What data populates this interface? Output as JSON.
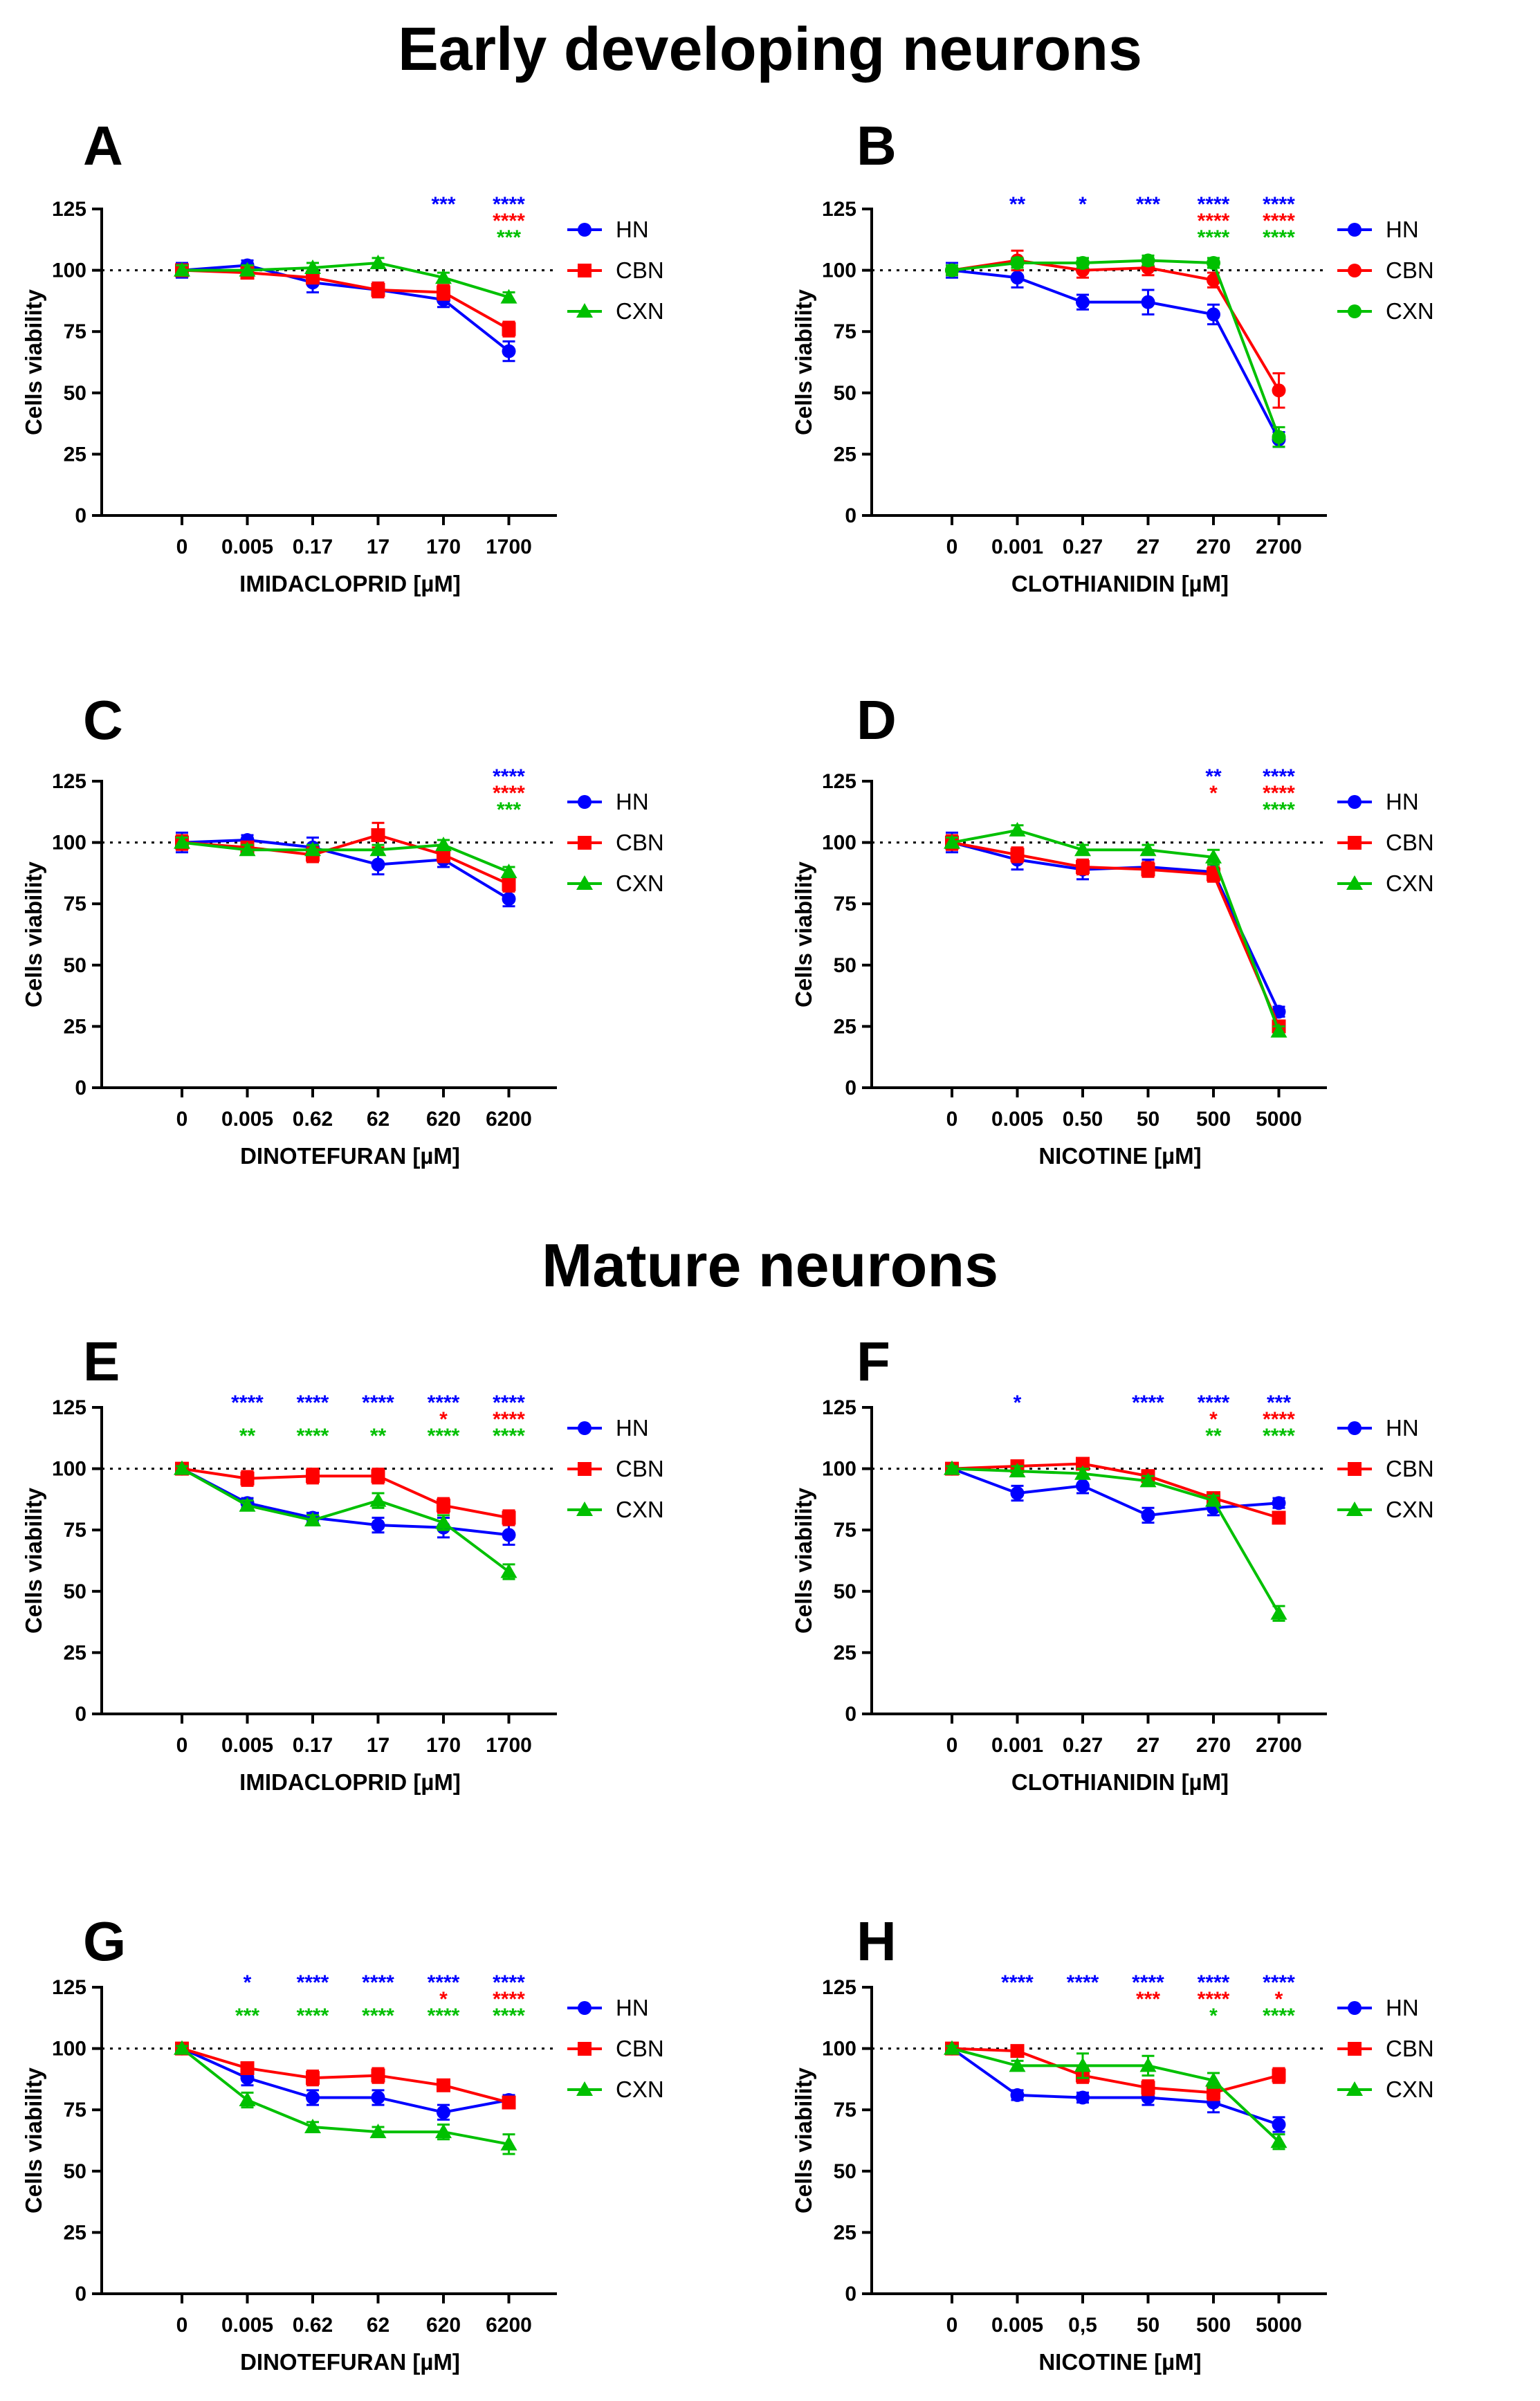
{
  "section_titles": {
    "early": "Early developing neurons",
    "mature": "Mature neurons"
  },
  "colors": {
    "HN": "#0000ff",
    "CBN": "#ff0000",
    "CXN": "#00c000"
  },
  "chart_data": [
    {
      "panel": "A",
      "type": "line",
      "xlabel": "IMIDACLOPRID [µM]",
      "ylabel": "Cells viability",
      "categories": [
        "0",
        "0.005",
        "0.17",
        "17",
        "170",
        "1700"
      ],
      "ylim": [
        0,
        125
      ],
      "yticks": [
        0,
        25,
        50,
        75,
        100,
        125
      ],
      "reference_line": 100,
      "series": [
        {
          "name": "HN",
          "marker": "circle",
          "values": [
            100,
            102,
            95,
            92,
            88,
            67
          ],
          "errors": [
            3,
            2,
            4,
            3,
            3,
            4
          ]
        },
        {
          "name": "CBN",
          "marker": "square",
          "values": [
            100,
            99,
            97,
            92,
            91,
            76
          ],
          "errors": [
            2,
            2,
            2,
            3,
            3,
            3
          ]
        },
        {
          "name": "CXN",
          "marker": "triangle",
          "values": [
            100,
            100,
            101,
            103,
            97,
            89
          ],
          "errors": [
            2,
            2,
            2,
            2,
            2,
            2
          ]
        }
      ],
      "significance": [
        {
          "row": 0,
          "color": "HN",
          "marks": [
            "",
            "",
            "",
            "",
            "***",
            "****"
          ]
        },
        {
          "row": 1,
          "color": "CBN",
          "marks": [
            "",
            "",
            "",
            "",
            "",
            "****"
          ]
        },
        {
          "row": 2,
          "color": "CXN",
          "marks": [
            "",
            "",
            "",
            "",
            "",
            "***"
          ]
        }
      ]
    },
    {
      "panel": "B",
      "type": "line",
      "xlabel": "CLOTHIANIDIN [µM]",
      "ylabel": "Cells viability",
      "categories": [
        "0",
        "0.001",
        "0.27",
        "27",
        "270",
        "2700"
      ],
      "ylim": [
        0,
        125
      ],
      "yticks": [
        0,
        25,
        50,
        75,
        100,
        125
      ],
      "reference_line": 100,
      "series": [
        {
          "name": "HN",
          "marker": "circle",
          "values": [
            100,
            97,
            87,
            87,
            82,
            31
          ],
          "errors": [
            3,
            4,
            3,
            5,
            4,
            3
          ]
        },
        {
          "name": "CBN",
          "marker": "circle",
          "values": [
            100,
            104,
            100,
            101,
            96,
            51
          ],
          "errors": [
            2,
            4,
            3,
            3,
            3,
            7
          ]
        },
        {
          "name": "CXN",
          "marker": "circle",
          "values": [
            100,
            103,
            103,
            104,
            103,
            32
          ],
          "errors": [
            2,
            2,
            2,
            2,
            2,
            4
          ]
        }
      ],
      "significance": [
        {
          "row": 0,
          "color": "HN",
          "marks": [
            "",
            "**",
            "*",
            "***",
            "****",
            "****"
          ]
        },
        {
          "row": 1,
          "color": "CBN",
          "marks": [
            "",
            "",
            "",
            "",
            "****",
            "****"
          ]
        },
        {
          "row": 2,
          "color": "CXN",
          "marks": [
            "",
            "",
            "",
            "",
            "****",
            "****"
          ]
        }
      ]
    },
    {
      "panel": "C",
      "type": "line",
      "xlabel": "DINOTEFURAN [µM]",
      "ylabel": "Cells viability",
      "categories": [
        "0",
        "0.005",
        "0.62",
        "62",
        "620",
        "6200"
      ],
      "ylim": [
        0,
        125
      ],
      "yticks": [
        0,
        25,
        50,
        75,
        100,
        125
      ],
      "reference_line": 100,
      "series": [
        {
          "name": "HN",
          "marker": "circle",
          "values": [
            100,
            101,
            98,
            91,
            93,
            77
          ],
          "errors": [
            4,
            2,
            4,
            4,
            3,
            3
          ]
        },
        {
          "name": "CBN",
          "marker": "square",
          "values": [
            100,
            98,
            95,
            103,
            95,
            83
          ],
          "errors": [
            3,
            2,
            3,
            5,
            3,
            3
          ]
        },
        {
          "name": "CXN",
          "marker": "triangle",
          "values": [
            100,
            97,
            97,
            97,
            99,
            88
          ],
          "errors": [
            2,
            2,
            2,
            2,
            2,
            2
          ]
        }
      ],
      "significance": [
        {
          "row": 0,
          "color": "HN",
          "marks": [
            "",
            "",
            "",
            "",
            "",
            "****"
          ]
        },
        {
          "row": 1,
          "color": "CBN",
          "marks": [
            "",
            "",
            "",
            "",
            "",
            "****"
          ]
        },
        {
          "row": 2,
          "color": "CXN",
          "marks": [
            "",
            "",
            "",
            "",
            "",
            "***"
          ]
        }
      ]
    },
    {
      "panel": "D",
      "type": "line",
      "xlabel": "NICOTINE [µM]",
      "ylabel": "Cells viability",
      "categories": [
        "0",
        "0.005",
        "0.50",
        "50",
        "500",
        "5000"
      ],
      "ylim": [
        0,
        125
      ],
      "yticks": [
        0,
        25,
        50,
        75,
        100,
        125
      ],
      "reference_line": 100,
      "series": [
        {
          "name": "HN",
          "marker": "circle",
          "values": [
            100,
            93,
            89,
            90,
            88,
            31
          ],
          "errors": [
            4,
            4,
            4,
            3,
            3,
            2
          ]
        },
        {
          "name": "CBN",
          "marker": "square",
          "values": [
            100,
            95,
            90,
            89,
            87,
            25
          ],
          "errors": [
            3,
            3,
            3,
            3,
            3,
            2
          ]
        },
        {
          "name": "CXN",
          "marker": "triangle",
          "values": [
            100,
            105,
            97,
            97,
            94,
            23
          ],
          "errors": [
            2,
            2,
            2,
            2,
            3,
            2
          ]
        }
      ],
      "significance": [
        {
          "row": 0,
          "color": "HN",
          "marks": [
            "",
            "",
            "",
            "",
            "**",
            "****"
          ]
        },
        {
          "row": 1,
          "color": "CBN",
          "marks": [
            "",
            "",
            "",
            "",
            "*",
            "****"
          ]
        },
        {
          "row": 2,
          "color": "CXN",
          "marks": [
            "",
            "",
            "",
            "",
            "",
            "****"
          ]
        }
      ]
    },
    {
      "panel": "E",
      "type": "line",
      "xlabel": "IMIDACLOPRID [µM]",
      "ylabel": "Cells viability",
      "categories": [
        "0",
        "0.005",
        "0.17",
        "17",
        "170",
        "1700"
      ],
      "ylim": [
        0,
        125
      ],
      "yticks": [
        0,
        25,
        50,
        75,
        100,
        125
      ],
      "reference_line": 100,
      "series": [
        {
          "name": "HN",
          "marker": "circle",
          "values": [
            100,
            86,
            80,
            77,
            76,
            73
          ],
          "errors": [
            1,
            2,
            2,
            3,
            4,
            4
          ]
        },
        {
          "name": "CBN",
          "marker": "square",
          "values": [
            100,
            96,
            97,
            97,
            85,
            80
          ],
          "errors": [
            1,
            3,
            3,
            3,
            3,
            3
          ]
        },
        {
          "name": "CXN",
          "marker": "triangle",
          "values": [
            100,
            85,
            79,
            87,
            78,
            58
          ],
          "errors": [
            1,
            2,
            2,
            3,
            3,
            3
          ]
        }
      ],
      "significance": [
        {
          "row": 0,
          "color": "HN",
          "marks": [
            "",
            "****",
            "****",
            "****",
            "****",
            "****"
          ]
        },
        {
          "row": 1,
          "color": "CBN",
          "marks": [
            "",
            "",
            "",
            "",
            "*",
            "****"
          ]
        },
        {
          "row": 2,
          "color": "CXN",
          "marks": [
            "",
            "**",
            "****",
            "**",
            "****",
            "****"
          ]
        }
      ]
    },
    {
      "panel": "F",
      "type": "line",
      "xlabel": "CLOTHIANIDIN [µM]",
      "ylabel": "Cells viability",
      "categories": [
        "0",
        "0.001",
        "0.27",
        "27",
        "270",
        "2700"
      ],
      "ylim": [
        0,
        125
      ],
      "yticks": [
        0,
        25,
        50,
        75,
        100,
        125
      ],
      "reference_line": 100,
      "series": [
        {
          "name": "HN",
          "marker": "circle",
          "values": [
            100,
            90,
            93,
            81,
            84,
            86
          ],
          "errors": [
            1,
            3,
            3,
            3,
            3,
            2
          ]
        },
        {
          "name": "CBN",
          "marker": "square",
          "values": [
            100,
            101,
            102,
            97,
            88,
            80
          ],
          "errors": [
            1,
            2,
            2,
            2,
            2,
            2
          ]
        },
        {
          "name": "CXN",
          "marker": "triangle",
          "values": [
            100,
            99,
            98,
            95,
            87,
            41
          ],
          "errors": [
            1,
            2,
            2,
            2,
            2,
            3
          ]
        }
      ],
      "significance": [
        {
          "row": 0,
          "color": "HN",
          "marks": [
            "",
            "*",
            "",
            "****",
            "****",
            "***"
          ]
        },
        {
          "row": 1,
          "color": "CBN",
          "marks": [
            "",
            "",
            "",
            "",
            "*",
            "****"
          ]
        },
        {
          "row": 2,
          "color": "CXN",
          "marks": [
            "",
            "",
            "",
            "",
            "**",
            "****"
          ]
        }
      ]
    },
    {
      "panel": "G",
      "type": "line",
      "xlabel": "DINOTEFURAN [µM]",
      "ylabel": "Cells viability",
      "categories": [
        "0",
        "0.005",
        "0.62",
        "62",
        "620",
        "6200"
      ],
      "ylim": [
        0,
        125
      ],
      "yticks": [
        0,
        25,
        50,
        75,
        100,
        125
      ],
      "reference_line": 100,
      "series": [
        {
          "name": "HN",
          "marker": "circle",
          "values": [
            100,
            88,
            80,
            80,
            74,
            79
          ],
          "errors": [
            1,
            3,
            3,
            3,
            3,
            2
          ]
        },
        {
          "name": "CBN",
          "marker": "square",
          "values": [
            100,
            92,
            88,
            89,
            85,
            78
          ],
          "errors": [
            1,
            2,
            3,
            3,
            2,
            2
          ]
        },
        {
          "name": "CXN",
          "marker": "triangle",
          "values": [
            100,
            79,
            68,
            66,
            66,
            61
          ],
          "errors": [
            1,
            3,
            2,
            2,
            3,
            4
          ]
        }
      ],
      "significance": [
        {
          "row": 0,
          "color": "HN",
          "marks": [
            "",
            "*",
            "****",
            "****",
            "****",
            "****"
          ]
        },
        {
          "row": 1,
          "color": "CBN",
          "marks": [
            "",
            "",
            "",
            "",
            "*",
            "****"
          ]
        },
        {
          "row": 2,
          "color": "CXN",
          "marks": [
            "",
            "***",
            "****",
            "****",
            "****",
            "****"
          ]
        }
      ]
    },
    {
      "panel": "H",
      "type": "line",
      "xlabel": "NICOTINE [µM]",
      "ylabel": "Cells viability",
      "categories": [
        "0",
        "0.005",
        "0,5",
        "50",
        "500",
        "5000"
      ],
      "ylim": [
        0,
        125
      ],
      "yticks": [
        0,
        25,
        50,
        75,
        100,
        125
      ],
      "reference_line": 100,
      "series": [
        {
          "name": "HN",
          "marker": "circle",
          "values": [
            100,
            81,
            80,
            80,
            78,
            69
          ],
          "errors": [
            1,
            2,
            2,
            3,
            4,
            3
          ]
        },
        {
          "name": "CBN",
          "marker": "square",
          "values": [
            100,
            99,
            89,
            84,
            82,
            89
          ],
          "errors": [
            1,
            2,
            3,
            3,
            3,
            3
          ]
        },
        {
          "name": "CXN",
          "marker": "triangle",
          "values": [
            100,
            93,
            93,
            93,
            87,
            62
          ],
          "errors": [
            1,
            2,
            5,
            4,
            3,
            3
          ]
        }
      ],
      "significance": [
        {
          "row": 0,
          "color": "HN",
          "marks": [
            "",
            "****",
            "****",
            "****",
            "****",
            "****"
          ]
        },
        {
          "row": 1,
          "color": "CBN",
          "marks": [
            "",
            "",
            "",
            "***",
            "****",
            "*"
          ]
        },
        {
          "row": 2,
          "color": "CXN",
          "marks": [
            "",
            "",
            "",
            "",
            "*",
            "****"
          ]
        }
      ]
    }
  ]
}
